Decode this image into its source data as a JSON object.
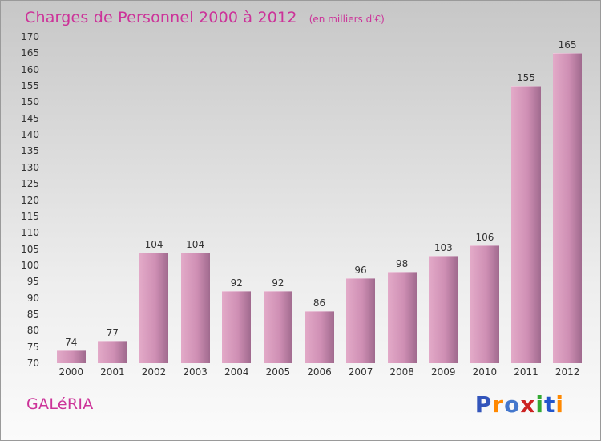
{
  "title": "Charges de Personnel 2000 à 2012",
  "subtitle": "(en milliers d'€)",
  "chart_data": {
    "type": "bar",
    "categories": [
      "2000",
      "2001",
      "2002",
      "2003",
      "2004",
      "2005",
      "2006",
      "2007",
      "2008",
      "2009",
      "2010",
      "2011",
      "2012"
    ],
    "values": [
      74,
      77,
      104,
      104,
      92,
      92,
      86,
      96,
      98,
      103,
      106,
      155,
      165
    ],
    "title": "Charges de Personnel 2000 à 2012",
    "subtitle": "(en milliers d'€)",
    "xlabel": "",
    "ylabel": "",
    "ylim": [
      70,
      170
    ],
    "ytick_step": 5,
    "grid": false,
    "legend": false,
    "bar_color_light": "#e3aac8",
    "bar_color_dark": "#a06a8e",
    "title_color": "#cc3399",
    "label_color": "#333333"
  },
  "footer": {
    "company": "GALéRIA",
    "logo": {
      "name": "Proxiti",
      "letters": [
        {
          "ch": "P",
          "color": "#3355bb"
        },
        {
          "ch": "r",
          "color": "#ff8800"
        },
        {
          "ch": "o",
          "color": "#4477cc"
        },
        {
          "ch": "x",
          "color": "#cc2222"
        },
        {
          "ch": "i",
          "color": "#33aa33"
        },
        {
          "ch": "t",
          "color": "#2255cc"
        },
        {
          "ch": "i",
          "color": "#ff8800"
        }
      ]
    }
  }
}
